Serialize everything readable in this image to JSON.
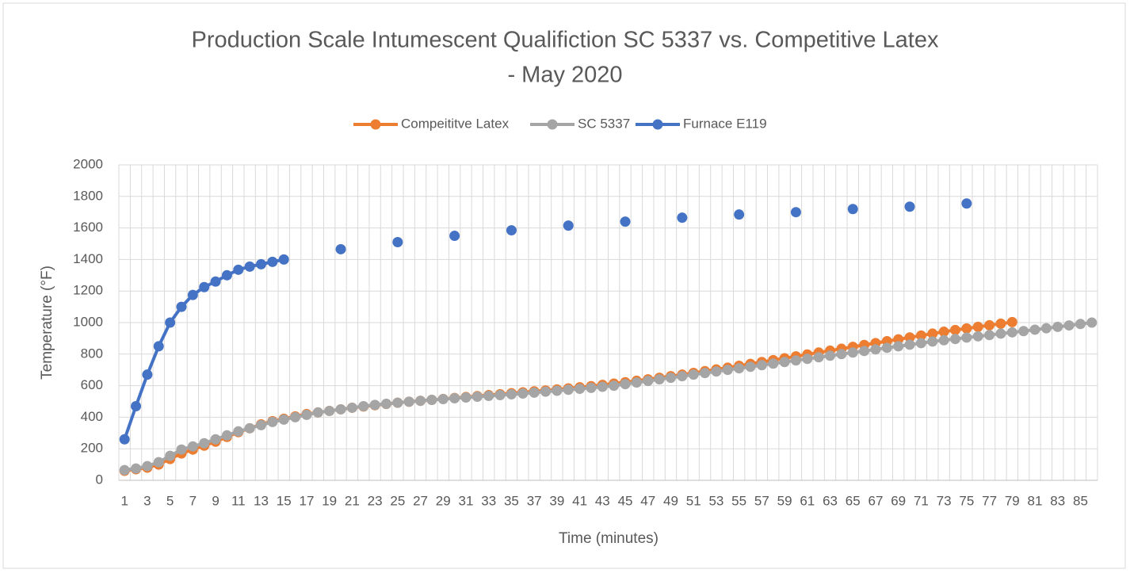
{
  "chart_data": {
    "type": "line",
    "title": [
      "Production Scale Intumescent Qualifiction SC 5337 vs. Competitive Latex",
      "- May 2020"
    ],
    "x_label": "Time (minutes)",
    "y_label": "Temperature (°F)",
    "categories": [
      1,
      null,
      3,
      null,
      5,
      null,
      7,
      null,
      9,
      null,
      11,
      null,
      13,
      null,
      15,
      null,
      17,
      null,
      19,
      null,
      21,
      null,
      23,
      null,
      25,
      null,
      27,
      null,
      29,
      null,
      31,
      null,
      33,
      null,
      35,
      null,
      37,
      null,
      39,
      null,
      41,
      null,
      43,
      null,
      45,
      null,
      47,
      null,
      49,
      null,
      51,
      null,
      53,
      null,
      55,
      null,
      57,
      null,
      59,
      null,
      61,
      null,
      63,
      null,
      65,
      null,
      67,
      null,
      69,
      null,
      71,
      null,
      73,
      null,
      75,
      null,
      77,
      null,
      79,
      null,
      81,
      null,
      83,
      null,
      85,
      null
    ],
    "ylim": [
      0,
      2000
    ],
    "yticks": [
      0,
      200,
      400,
      600,
      800,
      1000,
      1200,
      1400,
      1600,
      1800,
      2000
    ],
    "grid": true,
    "legend": "top",
    "series": [
      {
        "name": "Compeititve Latex",
        "color": "#ed7d31",
        "values": [
          60,
          70,
          80,
          100,
          135,
          170,
          195,
          220,
          245,
          275,
          305,
          330,
          355,
          375,
          390,
          405,
          420,
          430,
          440,
          450,
          460,
          468,
          476,
          484,
          492,
          498,
          504,
          510,
          516,
          522,
          528,
          534,
          540,
          546,
          552,
          558,
          564,
          570,
          576,
          583,
          590,
          597,
          605,
          613,
          622,
          631,
          640,
          650,
          660,
          670,
          681,
          692,
          703,
          714,
          726,
          738,
          750,
          762,
          774,
          786,
          798,
          810,
          822,
          834,
          846,
          858,
          870,
          882,
          894,
          906,
          918,
          930,
          942,
          953,
          963,
          973,
          983,
          993,
          1003,
          null,
          null,
          null,
          null,
          null,
          null,
          null
        ]
      },
      {
        "name": "SC 5337",
        "color": "#a5a5a5",
        "values": [
          65,
          75,
          90,
          115,
          155,
          195,
          215,
          235,
          260,
          285,
          310,
          330,
          350,
          370,
          385,
          400,
          415,
          430,
          440,
          450,
          460,
          470,
          478,
          485,
          492,
          498,
          504,
          510,
          515,
          520,
          525,
          530,
          535,
          540,
          545,
          550,
          556,
          562,
          568,
          574,
          580,
          586,
          593,
          600,
          610,
          620,
          630,
          640,
          650,
          660,
          670,
          680,
          690,
          700,
          710,
          720,
          730,
          740,
          750,
          760,
          770,
          780,
          790,
          800,
          810,
          820,
          830,
          840,
          850,
          860,
          870,
          880,
          888,
          896,
          905,
          913,
          921,
          930,
          938,
          946,
          955,
          964,
          973,
          982,
          991,
          1000
        ]
      },
      {
        "name": "Furnace E119",
        "color": "#4472c4",
        "values": [
          260,
          470,
          670,
          850,
          1000,
          1100,
          1175,
          1225,
          1260,
          1300,
          1335,
          1355,
          1370,
          1385,
          1400,
          null,
          null,
          null,
          null,
          1465,
          null,
          null,
          null,
          null,
          1510,
          null,
          null,
          null,
          null,
          1550,
          null,
          null,
          null,
          null,
          1585,
          null,
          null,
          null,
          null,
          1615,
          null,
          null,
          null,
          null,
          1640,
          null,
          null,
          null,
          null,
          1665,
          null,
          null,
          null,
          null,
          1685,
          null,
          null,
          null,
          null,
          1700,
          null,
          null,
          null,
          null,
          1720,
          null,
          null,
          null,
          null,
          1735,
          null,
          null,
          null,
          null,
          1755,
          null,
          null,
          null,
          null,
          null,
          null,
          null,
          null,
          null,
          null,
          null
        ]
      }
    ]
  }
}
